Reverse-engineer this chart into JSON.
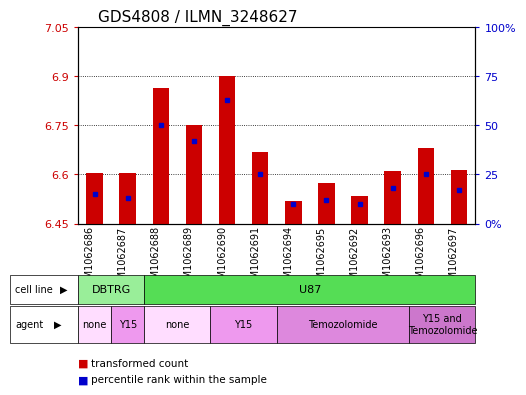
{
  "title": "GDS4808 / ILMN_3248627",
  "samples": [
    "GSM1062686",
    "GSM1062687",
    "GSM1062688",
    "GSM1062689",
    "GSM1062690",
    "GSM1062691",
    "GSM1062694",
    "GSM1062695",
    "GSM1062692",
    "GSM1062693",
    "GSM1062696",
    "GSM1062697"
  ],
  "transformed_count": [
    6.605,
    6.603,
    6.865,
    6.75,
    6.9,
    6.67,
    6.52,
    6.575,
    6.535,
    6.61,
    6.68,
    6.613
  ],
  "percentile_rank": [
    15,
    13,
    50,
    42,
    63,
    25,
    10,
    12,
    10,
    18,
    25,
    17
  ],
  "y_min": 6.45,
  "y_max": 7.05,
  "y_ticks": [
    6.45,
    6.6,
    6.75,
    6.9,
    7.05
  ],
  "right_y_ticks": [
    0,
    25,
    50,
    75,
    100
  ],
  "bar_color": "#cc0000",
  "percentile_color": "#0000cc",
  "cell_line_groups": [
    {
      "label": "DBTRG",
      "start": 0,
      "end": 1,
      "color": "#99ee99"
    },
    {
      "label": "U87",
      "start": 2,
      "end": 11,
      "color": "#55dd55"
    }
  ],
  "agent_groups": [
    {
      "label": "none",
      "start": 0,
      "end": 0,
      "color": "#ffddff"
    },
    {
      "label": "Y15",
      "start": 1,
      "end": 1,
      "color": "#ee99ee"
    },
    {
      "label": "none",
      "start": 2,
      "end": 3,
      "color": "#ffddff"
    },
    {
      "label": "Y15",
      "start": 4,
      "end": 5,
      "color": "#ee99ee"
    },
    {
      "label": "Temozolomide",
      "start": 6,
      "end": 9,
      "color": "#dd88dd"
    },
    {
      "label": "Y15 and\nTemozolomide",
      "start": 10,
      "end": 11,
      "color": "#cc77cc"
    }
  ],
  "legend_red": "transformed count",
  "legend_blue": "percentile rank within the sample",
  "bar_width": 0.5,
  "tick_label_color_left": "#cc0000",
  "tick_label_color_right": "#0000cc",
  "title_fontsize": 11,
  "axis_fontsize": 8,
  "sample_fontsize": 7,
  "label_fontsize": 8
}
